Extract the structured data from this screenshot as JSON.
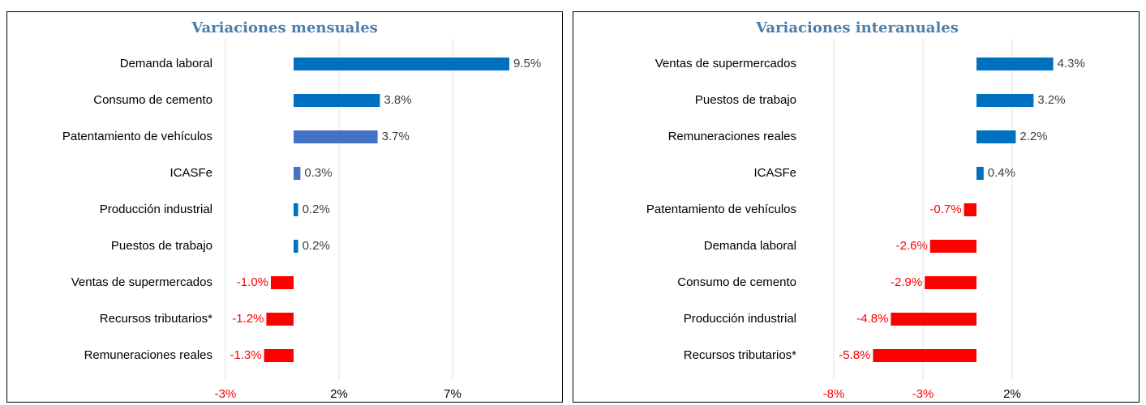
{
  "chart_data": [
    {
      "type": "bar",
      "orientation": "horizontal",
      "title": "Variaciones mensuales",
      "categories": [
        "Demanda laboral",
        "Consumo de cemento",
        "Patentamiento de vehículos",
        "ICASFe",
        "Producción industrial",
        "Puestos de trabajo",
        "Ventas de supermercados",
        "Recursos tributarios*",
        "Remuneraciones reales"
      ],
      "values": [
        9.5,
        3.8,
        3.7,
        0.3,
        0.2,
        0.2,
        -1.0,
        -1.2,
        -1.3
      ],
      "value_labels": [
        "9.5%",
        "3.8%",
        "3.7%",
        "0.3%",
        "0.2%",
        "0.2%",
        "-1.0%",
        "-1.2%",
        "-1.3%"
      ],
      "colors": [
        "#0070c0",
        "#0070c0",
        "#4472c4",
        "#4472c4",
        "#0070c0",
        "#0070c0",
        "#ff0000",
        "#ff0000",
        "#ff0000"
      ],
      "xlim": [
        -3,
        11.5
      ],
      "xticks": [
        {
          "value": -3,
          "label": "-3%"
        },
        {
          "value": 2,
          "label": "2%"
        },
        {
          "value": 7,
          "label": "7%"
        }
      ],
      "grid": true
    },
    {
      "type": "bar",
      "orientation": "horizontal",
      "title": "Variaciones interanuales",
      "categories": [
        "Ventas de supermercados",
        "Puestos de trabajo",
        "Remuneraciones reales",
        "ICASFe",
        "Patentamiento de vehículos",
        "Demanda laboral",
        "Consumo de cemento",
        "Producción industrial",
        "Recursos tributarios*"
      ],
      "values": [
        4.3,
        3.2,
        2.2,
        0.4,
        -0.7,
        -2.6,
        -2.9,
        -4.8,
        -5.8
      ],
      "value_labels": [
        "4.3%",
        "3.2%",
        "2.2%",
        "0.4%",
        "-0.7%",
        "-2.6%",
        "-2.9%",
        "-4.8%",
        "-5.8%"
      ],
      "colors": [
        "#0070c0",
        "#0070c0",
        "#0070c0",
        "#0070c0",
        "#ff0000",
        "#ff0000",
        "#ff0000",
        "#ff0000",
        "#ff0000"
      ],
      "xlim": [
        -8,
        7
      ],
      "xticks": [
        {
          "value": -8,
          "label": "-8%"
        },
        {
          "value": -3,
          "label": "-3%"
        },
        {
          "value": 2,
          "label": "2%"
        }
      ],
      "grid": true
    }
  ]
}
